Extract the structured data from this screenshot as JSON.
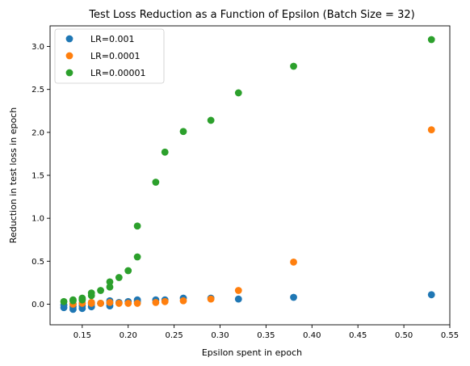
{
  "chart_data": {
    "type": "scatter",
    "title": "Test Loss Reduction as a Function of Epsilon (Batch Size = 32)",
    "xlabel": "Epsilon spent in epoch",
    "ylabel": "Reduction in test loss in epoch",
    "xlim": [
      0.115,
      0.55
    ],
    "ylim": [
      -0.24,
      3.24
    ],
    "xticks": [
      "0.15",
      "0.20",
      "0.25",
      "0.30",
      "0.35",
      "0.40",
      "0.45",
      "0.50",
      "0.55"
    ],
    "yticks": [
      "0.0",
      "0.5",
      "1.0",
      "1.5",
      "2.0",
      "2.5",
      "3.0"
    ],
    "grid": false,
    "legend_position": "top-left",
    "series": [
      {
        "name": "LR=0.001",
        "color": "#1f77b4",
        "points": [
          [
            0.13,
            -0.04
          ],
          [
            0.13,
            -0.01
          ],
          [
            0.14,
            -0.06
          ],
          [
            0.14,
            -0.03
          ],
          [
            0.14,
            0.0
          ],
          [
            0.15,
            -0.05
          ],
          [
            0.15,
            -0.02
          ],
          [
            0.15,
            0.01
          ],
          [
            0.16,
            -0.03
          ],
          [
            0.16,
            0.0
          ],
          [
            0.16,
            0.02
          ],
          [
            0.17,
            0.01
          ],
          [
            0.18,
            -0.02
          ],
          [
            0.18,
            0.01
          ],
          [
            0.18,
            0.04
          ],
          [
            0.19,
            0.02
          ],
          [
            0.2,
            0.03
          ],
          [
            0.21,
            0.03
          ],
          [
            0.21,
            0.05
          ],
          [
            0.23,
            0.05
          ],
          [
            0.24,
            0.05
          ],
          [
            0.26,
            0.07
          ],
          [
            0.29,
            0.07
          ],
          [
            0.32,
            0.06
          ],
          [
            0.38,
            0.08
          ],
          [
            0.53,
            0.11
          ]
        ]
      },
      {
        "name": "LR=0.0001",
        "color": "#ff7f0e",
        "points": [
          [
            0.14,
            0.0
          ],
          [
            0.15,
            0.01
          ],
          [
            0.16,
            0.01
          ],
          [
            0.16,
            0.02
          ],
          [
            0.17,
            0.01
          ],
          [
            0.18,
            0.02
          ],
          [
            0.19,
            0.01
          ],
          [
            0.2,
            0.01
          ],
          [
            0.21,
            0.01
          ],
          [
            0.23,
            0.02
          ],
          [
            0.24,
            0.03
          ],
          [
            0.26,
            0.04
          ],
          [
            0.29,
            0.06
          ],
          [
            0.32,
            0.16
          ],
          [
            0.38,
            0.49
          ],
          [
            0.53,
            2.03
          ]
        ]
      },
      {
        "name": "LR=0.00001",
        "color": "#2ca02c",
        "points": [
          [
            0.13,
            0.03
          ],
          [
            0.14,
            0.04
          ],
          [
            0.14,
            0.05
          ],
          [
            0.15,
            0.05
          ],
          [
            0.15,
            0.06
          ],
          [
            0.15,
            0.07
          ],
          [
            0.16,
            0.1
          ],
          [
            0.16,
            0.13
          ],
          [
            0.17,
            0.16
          ],
          [
            0.18,
            0.2
          ],
          [
            0.18,
            0.26
          ],
          [
            0.19,
            0.31
          ],
          [
            0.2,
            0.39
          ],
          [
            0.21,
            0.55
          ],
          [
            0.21,
            0.91
          ],
          [
            0.23,
            1.42
          ],
          [
            0.24,
            1.77
          ],
          [
            0.26,
            2.01
          ],
          [
            0.29,
            2.14
          ],
          [
            0.32,
            2.46
          ],
          [
            0.38,
            2.77
          ],
          [
            0.53,
            3.08
          ]
        ]
      }
    ]
  }
}
